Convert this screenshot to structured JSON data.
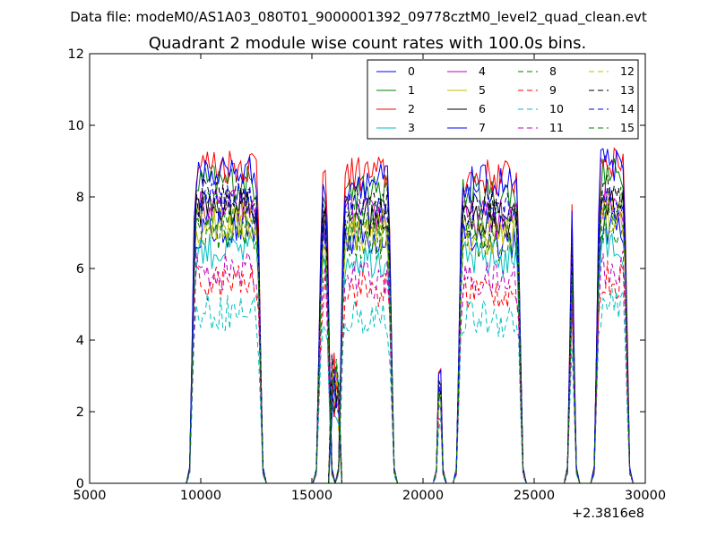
{
  "chart_data": {
    "type": "line",
    "suptitle": "Data file: modeM0/AS1A03_080T01_9000001392_09778cztM0_level2_quad_clean.evt",
    "title": "Quadrant 2 module wise count rates with 100.0s bins.",
    "xlabel": "",
    "ylabel": "",
    "x_offset_label": "+2.3816e8",
    "xlim": [
      5000,
      30000
    ],
    "ylim": [
      0,
      12
    ],
    "x_ticks": [
      5000,
      10000,
      15000,
      20000,
      25000,
      30000
    ],
    "y_ticks": [
      0,
      2,
      4,
      6,
      8,
      10,
      12
    ],
    "legend_position": "top-right",
    "segments": [
      {
        "start": 9500,
        "end": 12800
      },
      {
        "start": 15200,
        "end": 15900
      },
      {
        "start": 15900,
        "end": 16200
      },
      {
        "start": 16200,
        "end": 18700
      },
      {
        "start": 20600,
        "end": 20900
      },
      {
        "start": 21500,
        "end": 24500
      },
      {
        "start": 26500,
        "end": 26900
      },
      {
        "start": 27700,
        "end": 29300
      }
    ],
    "series": [
      {
        "name": "0",
        "color": "#0000ff",
        "dash": "solid",
        "level": 7.1
      },
      {
        "name": "1",
        "color": "#008000",
        "dash": "solid",
        "level": 8.4
      },
      {
        "name": "2",
        "color": "#ff0000",
        "dash": "solid",
        "level": 8.9
      },
      {
        "name": "3",
        "color": "#00bfbf",
        "dash": "solid",
        "level": 6.5
      },
      {
        "name": "4",
        "color": "#bf00bf",
        "dash": "solid",
        "level": 7.7
      },
      {
        "name": "5",
        "color": "#bfbf00",
        "dash": "solid",
        "level": 7.2
      },
      {
        "name": "6",
        "color": "#000000",
        "dash": "solid",
        "level": 7.7
      },
      {
        "name": "7",
        "color": "#0000ff",
        "dash": "solid",
        "level": 8.7
      },
      {
        "name": "8",
        "color": "#008000",
        "dash": "dashed",
        "level": 7.6
      },
      {
        "name": "9",
        "color": "#ff0000",
        "dash": "dashed",
        "level": 5.6
      },
      {
        "name": "10",
        "color": "#00bfbf",
        "dash": "dashed",
        "level": 4.8
      },
      {
        "name": "11",
        "color": "#bf00bf",
        "dash": "dashed",
        "level": 5.9
      },
      {
        "name": "12",
        "color": "#bfbf00",
        "dash": "dashed",
        "level": 7.4
      },
      {
        "name": "13",
        "color": "#000000",
        "dash": "dashed",
        "level": 8.0
      },
      {
        "name": "14",
        "color": "#0000ff",
        "dash": "dashed",
        "level": 7.9
      },
      {
        "name": "15",
        "color": "#008000",
        "dash": "dashed",
        "level": 7.0
      }
    ]
  }
}
